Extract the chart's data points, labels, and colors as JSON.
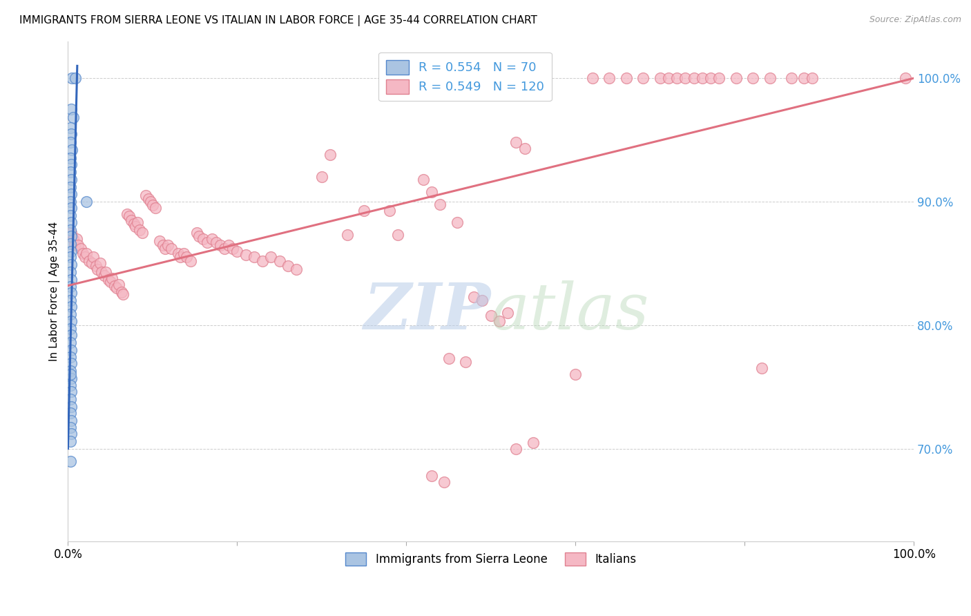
{
  "title": "IMMIGRANTS FROM SIERRA LEONE VS ITALIAN IN LABOR FORCE | AGE 35-44 CORRELATION CHART",
  "source": "Source: ZipAtlas.com",
  "ylabel": "In Labor Force | Age 35-44",
  "xlim": [
    0.0,
    1.0
  ],
  "ylim": [
    0.625,
    1.03
  ],
  "yticks": [
    0.7,
    0.8,
    0.9,
    1.0
  ],
  "ytick_labels": [
    "70.0%",
    "80.0%",
    "90.0%",
    "100.0%"
  ],
  "legend_R_blue": "0.554",
  "legend_N_blue": "70",
  "legend_R_pink": "0.549",
  "legend_N_pink": "120",
  "blue_color": "#aac4e2",
  "blue_edge_color": "#5588cc",
  "blue_line_color": "#3366bb",
  "pink_color": "#f5b8c4",
  "pink_edge_color": "#e08090",
  "pink_line_color": "#e07080",
  "blue_scatter": [
    [
      0.005,
      1.0
    ],
    [
      0.009,
      1.0
    ],
    [
      0.004,
      0.975
    ],
    [
      0.006,
      0.968
    ],
    [
      0.003,
      0.96
    ],
    [
      0.004,
      0.955
    ],
    [
      0.003,
      0.948
    ],
    [
      0.005,
      0.942
    ],
    [
      0.003,
      0.935
    ],
    [
      0.004,
      0.93
    ],
    [
      0.003,
      0.924
    ],
    [
      0.004,
      0.918
    ],
    [
      0.003,
      0.912
    ],
    [
      0.004,
      0.906
    ],
    [
      0.003,
      0.9
    ],
    [
      0.004,
      0.895
    ],
    [
      0.003,
      0.889
    ],
    [
      0.004,
      0.883
    ],
    [
      0.003,
      0.877
    ],
    [
      0.004,
      0.872
    ],
    [
      0.003,
      0.866
    ],
    [
      0.004,
      0.86
    ],
    [
      0.003,
      0.855
    ],
    [
      0.004,
      0.849
    ],
    [
      0.003,
      0.843
    ],
    [
      0.004,
      0.837
    ],
    [
      0.003,
      0.831
    ],
    [
      0.004,
      0.826
    ],
    [
      0.003,
      0.82
    ],
    [
      0.004,
      0.815
    ],
    [
      0.003,
      0.809
    ],
    [
      0.004,
      0.803
    ],
    [
      0.003,
      0.797
    ],
    [
      0.004,
      0.792
    ],
    [
      0.003,
      0.786
    ],
    [
      0.004,
      0.78
    ],
    [
      0.003,
      0.774
    ],
    [
      0.004,
      0.769
    ],
    [
      0.003,
      0.763
    ],
    [
      0.004,
      0.757
    ],
    [
      0.003,
      0.751
    ],
    [
      0.004,
      0.746
    ],
    [
      0.003,
      0.74
    ],
    [
      0.004,
      0.734
    ],
    [
      0.003,
      0.729
    ],
    [
      0.004,
      0.723
    ],
    [
      0.003,
      0.717
    ],
    [
      0.004,
      0.712
    ],
    [
      0.003,
      0.706
    ],
    [
      0.022,
      0.9
    ],
    [
      0.003,
      0.76
    ],
    [
      0.003,
      0.69
    ]
  ],
  "pink_scatter": [
    [
      0.004,
      0.875
    ],
    [
      0.006,
      0.87
    ],
    [
      0.008,
      0.865
    ],
    [
      0.01,
      0.87
    ],
    [
      0.012,
      0.865
    ],
    [
      0.015,
      0.862
    ],
    [
      0.018,
      0.858
    ],
    [
      0.02,
      0.855
    ],
    [
      0.022,
      0.858
    ],
    [
      0.025,
      0.852
    ],
    [
      0.028,
      0.85
    ],
    [
      0.03,
      0.855
    ],
    [
      0.033,
      0.848
    ],
    [
      0.035,
      0.845
    ],
    [
      0.038,
      0.85
    ],
    [
      0.04,
      0.843
    ],
    [
      0.043,
      0.84
    ],
    [
      0.045,
      0.843
    ],
    [
      0.048,
      0.837
    ],
    [
      0.05,
      0.835
    ],
    [
      0.052,
      0.838
    ],
    [
      0.055,
      0.832
    ],
    [
      0.058,
      0.83
    ],
    [
      0.06,
      0.833
    ],
    [
      0.063,
      0.827
    ],
    [
      0.065,
      0.825
    ],
    [
      0.07,
      0.89
    ],
    [
      0.072,
      0.888
    ],
    [
      0.075,
      0.885
    ],
    [
      0.078,
      0.882
    ],
    [
      0.08,
      0.88
    ],
    [
      0.082,
      0.883
    ],
    [
      0.085,
      0.877
    ],
    [
      0.088,
      0.875
    ],
    [
      0.092,
      0.905
    ],
    [
      0.095,
      0.902
    ],
    [
      0.098,
      0.9
    ],
    [
      0.1,
      0.897
    ],
    [
      0.103,
      0.895
    ],
    [
      0.108,
      0.868
    ],
    [
      0.112,
      0.865
    ],
    [
      0.115,
      0.862
    ],
    [
      0.118,
      0.865
    ],
    [
      0.122,
      0.862
    ],
    [
      0.13,
      0.858
    ],
    [
      0.133,
      0.855
    ],
    [
      0.137,
      0.858
    ],
    [
      0.14,
      0.855
    ],
    [
      0.145,
      0.852
    ],
    [
      0.152,
      0.875
    ],
    [
      0.155,
      0.872
    ],
    [
      0.16,
      0.87
    ],
    [
      0.165,
      0.867
    ],
    [
      0.17,
      0.87
    ],
    [
      0.175,
      0.867
    ],
    [
      0.18,
      0.865
    ],
    [
      0.185,
      0.862
    ],
    [
      0.19,
      0.865
    ],
    [
      0.195,
      0.862
    ],
    [
      0.2,
      0.86
    ],
    [
      0.21,
      0.857
    ],
    [
      0.22,
      0.855
    ],
    [
      0.23,
      0.852
    ],
    [
      0.24,
      0.855
    ],
    [
      0.25,
      0.852
    ],
    [
      0.26,
      0.848
    ],
    [
      0.27,
      0.845
    ],
    [
      0.3,
      0.92
    ],
    [
      0.31,
      0.938
    ],
    [
      0.33,
      0.873
    ],
    [
      0.35,
      0.893
    ],
    [
      0.38,
      0.893
    ],
    [
      0.39,
      0.873
    ],
    [
      0.42,
      0.918
    ],
    [
      0.43,
      0.908
    ],
    [
      0.44,
      0.898
    ],
    [
      0.46,
      0.883
    ],
    [
      0.48,
      0.823
    ],
    [
      0.49,
      0.82
    ],
    [
      0.5,
      0.808
    ],
    [
      0.51,
      0.803
    ],
    [
      0.52,
      0.81
    ],
    [
      0.45,
      0.773
    ],
    [
      0.47,
      0.77
    ],
    [
      0.53,
      0.7
    ],
    [
      0.55,
      0.705
    ],
    [
      0.43,
      0.678
    ],
    [
      0.445,
      0.673
    ],
    [
      0.6,
      0.76
    ],
    [
      0.82,
      0.765
    ],
    [
      0.53,
      0.948
    ],
    [
      0.54,
      0.943
    ],
    [
      0.62,
      1.0
    ],
    [
      0.64,
      1.0
    ],
    [
      0.66,
      1.0
    ],
    [
      0.68,
      1.0
    ],
    [
      0.7,
      1.0
    ],
    [
      0.71,
      1.0
    ],
    [
      0.72,
      1.0
    ],
    [
      0.73,
      1.0
    ],
    [
      0.74,
      1.0
    ],
    [
      0.75,
      1.0
    ],
    [
      0.76,
      1.0
    ],
    [
      0.77,
      1.0
    ],
    [
      0.79,
      1.0
    ],
    [
      0.81,
      1.0
    ],
    [
      0.83,
      1.0
    ],
    [
      0.855,
      1.0
    ],
    [
      0.87,
      1.0
    ],
    [
      0.88,
      1.0
    ],
    [
      0.99,
      1.0
    ]
  ],
  "blue_trend_x": [
    0.0,
    0.011
  ],
  "blue_trend_y": [
    0.7,
    1.01
  ],
  "pink_trend_x": [
    0.0,
    1.0
  ],
  "pink_trend_y": [
    0.832,
    1.0
  ]
}
